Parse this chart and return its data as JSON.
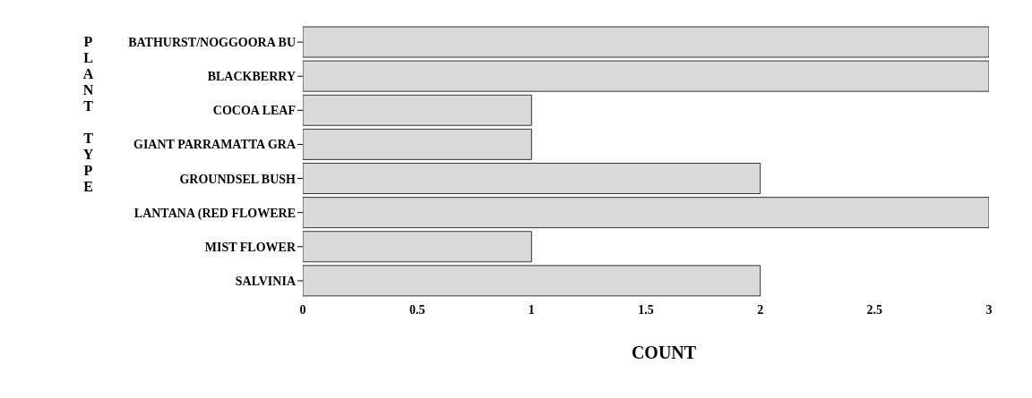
{
  "chart_data": {
    "type": "bar",
    "orientation": "horizontal",
    "xlabel": "COUNT",
    "ylabel": "PLANT TYPE",
    "categories": [
      "BATHURST/NOGGOORA BU",
      "BLACKBERRY",
      "COCOA LEAF",
      "GIANT PARRAMATTA GRA",
      "GROUNDSEL BUSH",
      "LANTANA (RED FLOWERE",
      "MIST FLOWER",
      "SALVINIA"
    ],
    "values": [
      3,
      3,
      1,
      1,
      2,
      3,
      1,
      2
    ],
    "color": "#d9d9d9",
    "xlim": [
      0,
      3
    ],
    "xticks": [
      0,
      0.5,
      1,
      1.5,
      2,
      2.5,
      3
    ],
    "grid": false
  }
}
